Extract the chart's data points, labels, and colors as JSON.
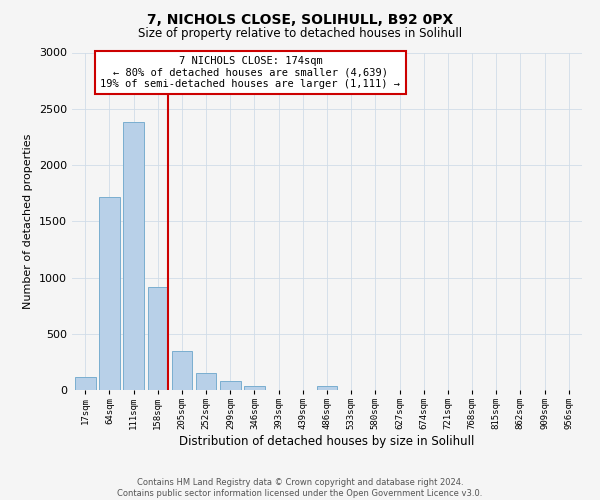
{
  "title1": "7, NICHOLS CLOSE, SOLIHULL, B92 0PX",
  "title2": "Size of property relative to detached houses in Solihull",
  "xlabel": "Distribution of detached houses by size in Solihull",
  "ylabel": "Number of detached properties",
  "bar_labels": [
    "17sqm",
    "64sqm",
    "111sqm",
    "158sqm",
    "205sqm",
    "252sqm",
    "299sqm",
    "346sqm",
    "393sqm",
    "439sqm",
    "486sqm",
    "533sqm",
    "580sqm",
    "627sqm",
    "674sqm",
    "721sqm",
    "768sqm",
    "815sqm",
    "862sqm",
    "909sqm",
    "956sqm"
  ],
  "bar_values": [
    120,
    1720,
    2380,
    920,
    350,
    155,
    80,
    40,
    0,
    0,
    35,
    0,
    0,
    0,
    0,
    0,
    0,
    0,
    0,
    0,
    0
  ],
  "bar_color": "#b8d0e8",
  "bar_edge_color": "#7aaed0",
  "property_line_color": "#cc0000",
  "annotation_title": "7 NICHOLS CLOSE: 174sqm",
  "annotation_line1": "← 80% of detached houses are smaller (4,639)",
  "annotation_line2": "19% of semi-detached houses are larger (1,111) →",
  "annotation_box_color": "#ffffff",
  "annotation_box_edgecolor": "#cc0000",
  "footer1": "Contains HM Land Registry data © Crown copyright and database right 2024.",
  "footer2": "Contains public sector information licensed under the Open Government Licence v3.0.",
  "ylim": [
    0,
    3000
  ],
  "background_color": "#f5f5f5"
}
